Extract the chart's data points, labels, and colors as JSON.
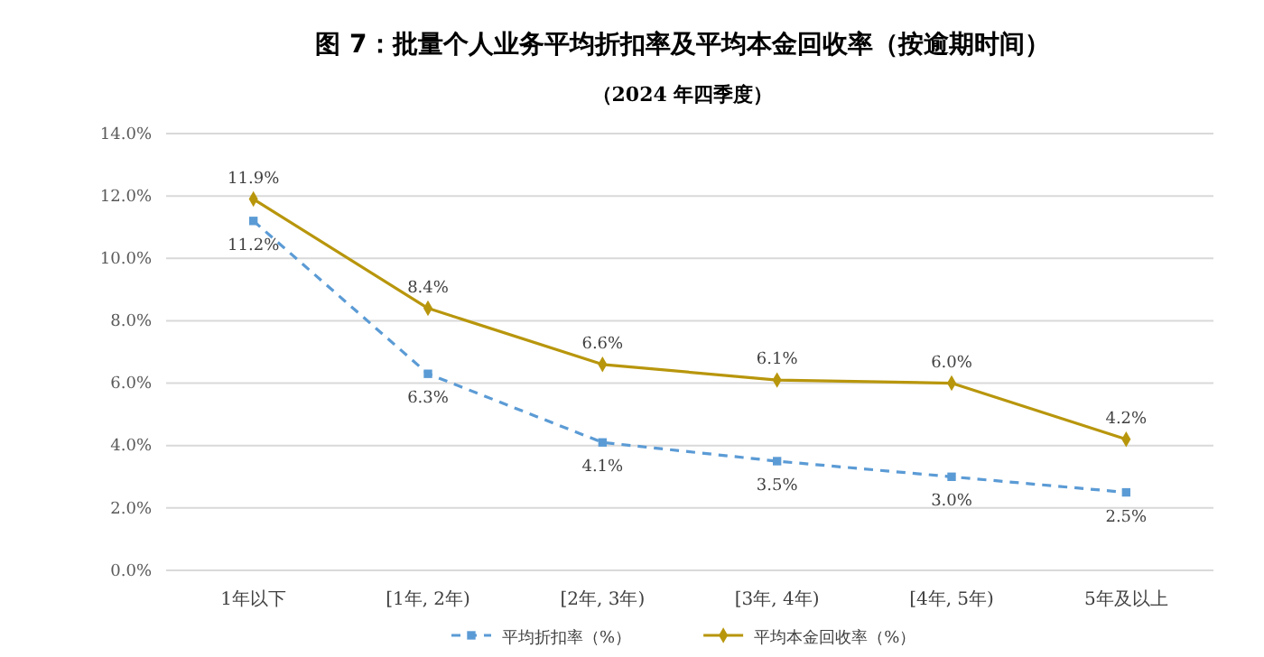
{
  "chart_data": {
    "type": "line",
    "title": "图 7：批量个人业务平均折扣率及平均本金回收率（按逾期时间）",
    "subtitle": "（2024 年四季度）",
    "categories": [
      "1年以下",
      "[1年, 2年)",
      "[2年, 3年)",
      "[3年, 4年)",
      "[4年, 5年)",
      "5年及以上"
    ],
    "series": [
      {
        "name": "平均折扣率（%）",
        "color": "#5b9bd5",
        "values": [
          11.2,
          6.3,
          4.1,
          3.5,
          3.0,
          2.5
        ],
        "value_labels": [
          "11.2%",
          "6.3%",
          "4.1%",
          "3.5%",
          "3.0%",
          "2.5%"
        ],
        "marker": "square",
        "line_style": "dashed"
      },
      {
        "name": "平均本金回收率（%）",
        "color": "#b8960c",
        "values": [
          11.9,
          8.4,
          6.6,
          6.1,
          6.0,
          4.2
        ],
        "value_labels": [
          "11.9%",
          "8.4%",
          "6.6%",
          "6.1%",
          "6.0%",
          "4.2%"
        ],
        "marker": "diamond",
        "line_style": "solid"
      }
    ],
    "ylim": [
      0,
      14
    ],
    "yticks": [
      {
        "value": 0,
        "label": "0.0%"
      },
      {
        "value": 2,
        "label": "2.0%"
      },
      {
        "value": 4,
        "label": "4.0%"
      },
      {
        "value": 6,
        "label": "6.0%"
      },
      {
        "value": 8,
        "label": "8.0%"
      },
      {
        "value": 10,
        "label": "10.0%"
      },
      {
        "value": 12,
        "label": "12.0%"
      },
      {
        "value": 14,
        "label": "14.0%"
      }
    ],
    "grid": "y",
    "legend": "bottom"
  }
}
